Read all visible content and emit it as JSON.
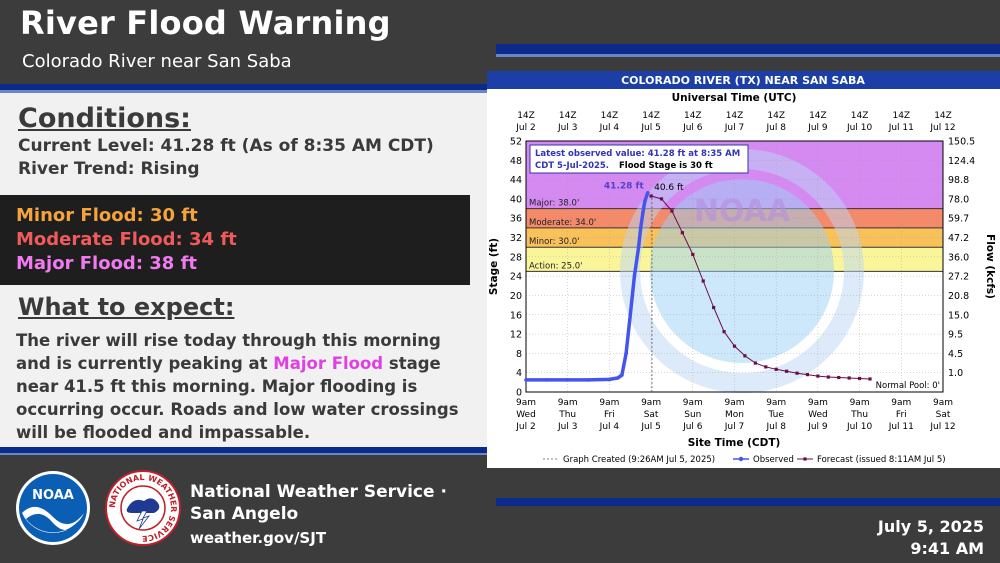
{
  "header": {
    "title": "River Flood Warning",
    "subtitle": "Colorado River near San Saba"
  },
  "conditions": {
    "title": "Conditions:",
    "current_level": "Current Level: 41.28 ft  (As of 8:35 AM CDT)",
    "trend": "River Trend: Rising"
  },
  "flood_levels": {
    "minor": "Minor Flood: 30  ft",
    "moderate": "Moderate Flood: 34 ft",
    "major": "Major Flood: 38 ft",
    "colors": {
      "minor": "#f6a33c",
      "moderate": "#f05a5a",
      "major": "#f07af0"
    }
  },
  "expect": {
    "title": "What to expect:",
    "text_before": "The river will  rise today through this morning and is currently peaking at ",
    "highlight": "Major Flood",
    "text_after": " stage near 41.5 ft this morning.  Major flooding is occurring occur.  Roads and low water crossings will be flooded and impassable."
  },
  "footer": {
    "office_line1": "National Weather Service ·",
    "office_line2": "San Angelo",
    "url": "weather.gov/SJT",
    "date": "July 5, 2025",
    "time": "9:41 AM",
    "noaa_logo_text": "NOAA",
    "nws_logo_text": "NATIONAL WEATHER SERVICE"
  },
  "chart_data": {
    "type": "line",
    "title": "COLORADO RIVER (TX) NEAR SAN SABA",
    "top_axis_label": "Universal Time (UTC)",
    "xlabel": "Site Time (CDT)",
    "ylabel": "Stage (ft)",
    "y2label": "Flow (kcfs)",
    "ylim": [
      0,
      52
    ],
    "yticks": [
      0,
      4,
      8,
      12,
      16,
      20,
      24,
      28,
      32,
      36,
      40,
      44,
      48,
      52
    ],
    "y2ticks": [
      "1.0",
      "4.5",
      "9.5",
      "15.0",
      "20.8",
      "27.2",
      "36.0",
      "47.2",
      "59.7",
      "78.0",
      "98.8",
      "124.4",
      "150.5"
    ],
    "x_days": [
      {
        "top1": "14Z",
        "top2": "Jul 2",
        "b1": "9am",
        "b2": "Wed",
        "b3": "Jul 2"
      },
      {
        "top1": "14Z",
        "top2": "Jul 3",
        "b1": "9am",
        "b2": "Thu",
        "b3": "Jul 3"
      },
      {
        "top1": "14Z",
        "top2": "Jul 4",
        "b1": "9am",
        "b2": "Fri",
        "b3": "Jul 4"
      },
      {
        "top1": "14Z",
        "top2": "Jul 5",
        "b1": "9am",
        "b2": "Sat",
        "b3": "Jul 5"
      },
      {
        "top1": "14Z",
        "top2": "Jul 6",
        "b1": "9am",
        "b2": "Sun",
        "b3": "Jul 6"
      },
      {
        "top1": "14Z",
        "top2": "Jul 7",
        "b1": "9am",
        "b2": "Mon",
        "b3": "Jul 7"
      },
      {
        "top1": "14Z",
        "top2": "Jul 8",
        "b1": "9am",
        "b2": "Tue",
        "b3": "Jul 8"
      },
      {
        "top1": "14Z",
        "top2": "Jul 9",
        "b1": "9am",
        "b2": "Wed",
        "b3": "Jul 9"
      },
      {
        "top1": "14Z",
        "top2": "Jul 10",
        "b1": "9am",
        "b2": "Thu",
        "b3": "Jul 10"
      },
      {
        "top1": "14Z",
        "top2": "Jul 11",
        "b1": "9am",
        "b2": "Fri",
        "b3": "Jul 11"
      },
      {
        "top1": "14Z",
        "top2": "Jul 12",
        "b1": "9am",
        "b2": "Sat",
        "b3": "Jul 12"
      }
    ],
    "bands": [
      {
        "label": "Action: 25.0'",
        "from": 25,
        "to": 30,
        "color": "#fbf59a"
      },
      {
        "label": "Minor: 30.0'",
        "from": 30,
        "to": 34,
        "color": "#f9c15a"
      },
      {
        "label": "Moderate: 34.0'",
        "from": 34,
        "to": 38,
        "color": "#f58a6a"
      },
      {
        "label": "Major: 38.0'",
        "from": 38,
        "to": 52,
        "color": "#d58af2"
      }
    ],
    "observed": {
      "name": "Observed",
      "color": "#4455ee",
      "points": [
        [
          0,
          2.5
        ],
        [
          0.5,
          2.5
        ],
        [
          1,
          2.5
        ],
        [
          1.5,
          2.5
        ],
        [
          2,
          2.6
        ],
        [
          2.2,
          2.9
        ],
        [
          2.3,
          3.5
        ],
        [
          2.4,
          8
        ],
        [
          2.5,
          16
        ],
        [
          2.6,
          24
        ],
        [
          2.7,
          30
        ],
        [
          2.75,
          34
        ],
        [
          2.8,
          37
        ],
        [
          2.85,
          39.5
        ],
        [
          2.92,
          41.28
        ]
      ]
    },
    "forecast": {
      "name": "Forecast (issued 8:11AM Jul 5)",
      "color": "#6a0e4a",
      "points": [
        [
          3,
          40.6
        ],
        [
          3.25,
          40
        ],
        [
          3.5,
          37.5
        ],
        [
          3.75,
          33
        ],
        [
          4,
          28.5
        ],
        [
          4.25,
          23
        ],
        [
          4.5,
          17.5
        ],
        [
          4.75,
          12.5
        ],
        [
          5,
          9.5
        ],
        [
          5.25,
          7.5
        ],
        [
          5.5,
          6
        ],
        [
          5.75,
          5.2
        ],
        [
          6,
          4.7
        ],
        [
          6.25,
          4.3
        ],
        [
          6.5,
          3.9
        ],
        [
          6.75,
          3.6
        ],
        [
          7,
          3.3
        ],
        [
          7.25,
          3.1
        ],
        [
          7.5,
          3
        ],
        [
          7.75,
          2.9
        ],
        [
          8,
          2.8
        ],
        [
          8.25,
          2.7
        ]
      ]
    },
    "observed_peak_label": "41.28 ft",
    "forecast_peak_label": "40.6 ft",
    "info_box": {
      "line1": "Latest observed value: 41.28 ft at 8:35 AM",
      "line2a": "CDT 5-Jul-2025.",
      "line2b": "Flood Stage is 30 ft"
    },
    "normal_pool": "Normal Pool: 0'",
    "legend": {
      "created": "Graph Created (9:26AM Jul 5, 2025)",
      "observed": "Observed",
      "forecast": "Forecast (issued 8:11AM Jul 5)"
    },
    "watermark": {
      "noaa": "NOAA",
      "ring": "NATIONAL OCEANIC AND ATMOSPHERIC ADMINISTRATION",
      "dept": "U.S. DEPARTMENT OF COMMERCE"
    }
  }
}
